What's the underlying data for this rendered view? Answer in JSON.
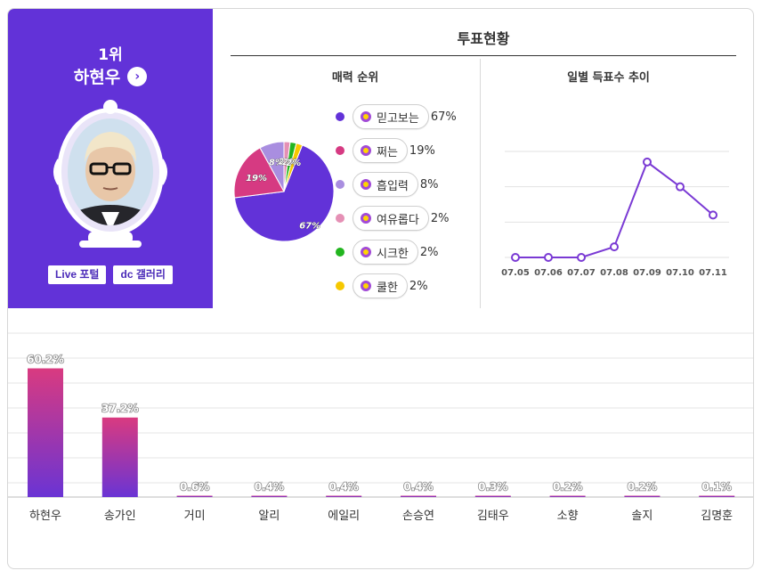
{
  "winner": {
    "rank": "1위",
    "name": "하현우",
    "links": [
      "Live 포털",
      "dc 갤러리"
    ]
  },
  "status": {
    "title": "투표현황"
  },
  "charm": {
    "title": "매력 순위",
    "items": [
      {
        "label": "믿고보는",
        "pct": "67%",
        "color": "#6232d8"
      },
      {
        "label": "쩌는",
        "pct": "19%",
        "color": "#d63a82"
      },
      {
        "label": "흡입력",
        "pct": "8%",
        "color": "#a98ee0"
      },
      {
        "label": "여유롭다",
        "pct": "2%",
        "color": "#e590b5"
      },
      {
        "label": "시크한",
        "pct": "2%",
        "color": "#22b51f"
      },
      {
        "label": "쿨한",
        "pct": "2%",
        "color": "#f6c800"
      }
    ]
  },
  "daily": {
    "title": "일별 득표수 추이",
    "dates": [
      "07.05",
      "07.06",
      "07.07",
      "07.08",
      "07.09",
      "07.10",
      "07.11"
    ]
  },
  "chart_data": [
    {
      "type": "pie",
      "title": "매력 순위",
      "categories": [
        "믿고보는",
        "쩌는",
        "흡입력",
        "여유롭다",
        "시크한",
        "쿨한"
      ],
      "values": [
        67,
        19,
        8,
        2,
        2,
        2
      ],
      "labels": [
        "67%",
        "19%",
        "8%",
        "2%",
        "2%",
        "2%"
      ]
    },
    {
      "type": "line",
      "title": "일별 득표수 추이",
      "x": [
        "07.05",
        "07.06",
        "07.07",
        "07.08",
        "07.09",
        "07.10",
        "07.11"
      ],
      "values": [
        0,
        0,
        0,
        3,
        27,
        20,
        12
      ],
      "ylim": [
        0,
        30
      ],
      "grid": true
    },
    {
      "type": "bar",
      "categories": [
        "하현우",
        "송가인",
        "거미",
        "알리",
        "에일리",
        "손승연",
        "김태우",
        "소향",
        "솔지",
        "김명훈"
      ],
      "values": [
        60.2,
        37.2,
        0.6,
        0.4,
        0.4,
        0.4,
        0.3,
        0.2,
        0.2,
        0.1
      ],
      "labels": [
        "60.2%",
        "37.2%",
        "0.6%",
        "0.4%",
        "0.4%",
        "0.4%",
        "0.3%",
        "0.2%",
        "0.2%",
        "0.1%"
      ],
      "ylim": [
        0,
        70
      ],
      "grid": true
    }
  ]
}
